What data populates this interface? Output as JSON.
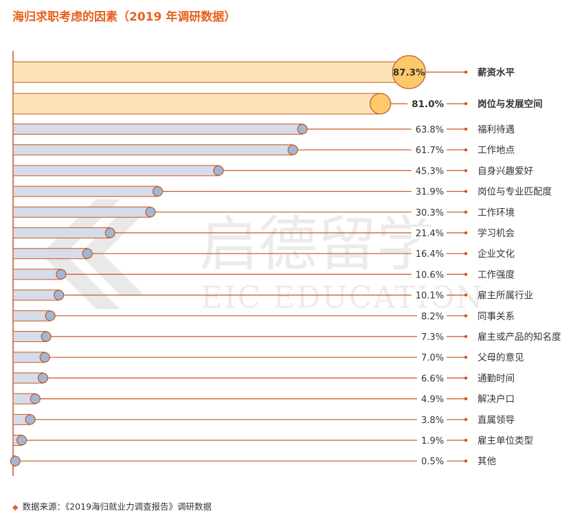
{
  "title": "海归求职考虑的因素（2019 年调研数据）",
  "source": "数据来源：《2019海归就业力调查报告》调研数据",
  "watermark": {
    "brand_cn": "启德留学",
    "brand_en": "EIC EDUCATION"
  },
  "colors": {
    "accent": "#e8601c",
    "highlight_fill": "#fde3b8",
    "highlight_circle": "#fdc96a",
    "bar_fill": "#d6dcea",
    "bar_stroke": "#c9541b",
    "dot_fill": "#9fb8d8",
    "label_text": "#333333"
  },
  "chart_data": {
    "type": "bar",
    "orientation": "horizontal",
    "title": "海归求职考虑的因素（2019 年调研数据）",
    "value_unit": "%",
    "xlim": [
      0,
      100
    ],
    "grid": false,
    "highlighted_count": 2,
    "categories": [
      "薪资水平",
      "岗位与发展空间",
      "福利待遇",
      "工作地点",
      "自身兴趣爱好",
      "岗位与专业匹配度",
      "工作环境",
      "学习机会",
      "企业文化",
      "工作强度",
      "雇主所属行业",
      "同事关系",
      "雇主或产品的知名度",
      "父母的意见",
      "通勤时间",
      "解决户口",
      "直属领导",
      "雇主单位类型",
      "其他"
    ],
    "values": [
      87.3,
      81.0,
      63.8,
      61.7,
      45.3,
      31.9,
      30.3,
      21.4,
      16.4,
      10.6,
      10.1,
      8.2,
      7.3,
      7.0,
      6.6,
      4.9,
      3.8,
      1.9,
      0.5
    ],
    "value_labels": [
      "87.3%",
      "81.0%",
      "63.8%",
      "61.7%",
      "45.3%",
      "31.9%",
      "30.3%",
      "21.4%",
      "16.4%",
      "10.6%",
      "10.1%",
      "8.2%",
      "7.3%",
      "7.0%",
      "6.6%",
      "4.9%",
      "3.8%",
      "1.9%",
      "0.5%"
    ]
  }
}
